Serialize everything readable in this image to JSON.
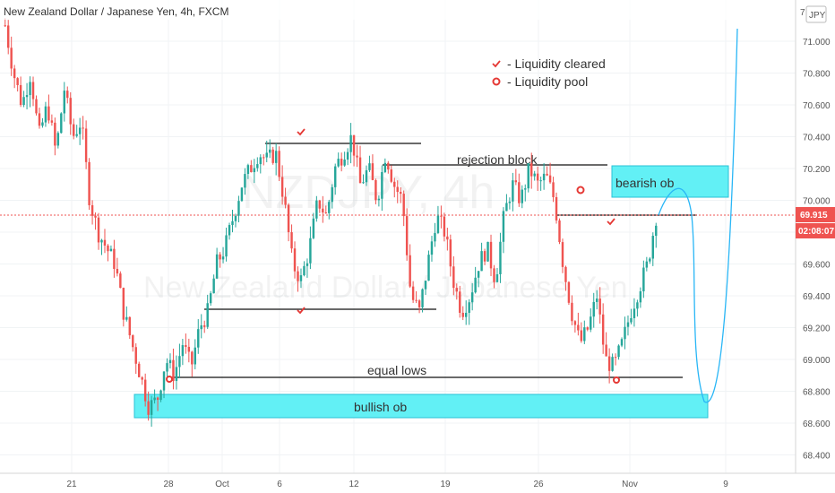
{
  "header": {
    "symbol_title": "New Zealand Dollar / Japanese Yen, 4h, FXCM"
  },
  "watermark": {
    "ticker": "NZDJPY, 4h",
    "name": "New Zealand Dollar / Japanese Yen"
  },
  "currency_badge": "JPY",
  "price_axis": {
    "ticks": [
      "71.000",
      "70.800",
      "70.600",
      "70.400",
      "70.200",
      "70.000",
      "69.800",
      "69.600",
      "69.400",
      "69.200",
      "69.000",
      "68.800",
      "68.600",
      "68.400"
    ],
    "top_partial": "7",
    "current_price": "69.915",
    "countdown": "02:08:07"
  },
  "time_axis": {
    "labels": [
      "21",
      "28",
      "Oct",
      "6",
      "12",
      "19",
      "26",
      "Nov",
      "9"
    ]
  },
  "legend": {
    "cleared_icon": "check-icon",
    "cleared_label": "- Liquidity cleared",
    "pool_icon": "target-circle-icon",
    "pool_label": "- Liquidity pool"
  },
  "annotations": {
    "rejection_block": "rejection block",
    "bearish_ob": "bearish ob",
    "equal_lows": "equal lows",
    "bullish_ob": "bullish ob"
  },
  "colors": {
    "up": "#26a69a",
    "down": "#ef5350",
    "zone_fill": "#62f0f5",
    "zone_border": "#29c2d6",
    "projection": "#29b6f6",
    "marker": "#e53935",
    "price_tag": "#ef5350"
  },
  "chart_data": {
    "type": "candlestick",
    "title": "New Zealand Dollar / Japanese Yen, 4h, FXCM",
    "y_range": [
      68.3,
      71.1
    ],
    "current_price": 69.915,
    "zones": [
      {
        "label": "bearish ob",
        "low": 70.02,
        "high": 70.22
      },
      {
        "label": "bullish ob",
        "low": 68.64,
        "high": 68.78
      }
    ],
    "levels": [
      {
        "label": "equal lows",
        "price": 68.88
      },
      {
        "label": "rejection block",
        "price": 70.22
      }
    ],
    "close_path": [
      71.1,
      70.8,
      70.6,
      70.8,
      70.4,
      70.6,
      70.3,
      70.7,
      70.4,
      70.5,
      70.0,
      69.8,
      69.7,
      69.6,
      69.3,
      69.1,
      68.9,
      68.7,
      68.75,
      69.0,
      68.9,
      69.1,
      68.95,
      69.2,
      69.3,
      69.6,
      69.7,
      69.9,
      70.1,
      70.2,
      70.3,
      70.25,
      70.3,
      70.0,
      69.6,
      69.5,
      69.7,
      70.0,
      69.9,
      70.2,
      70.3,
      70.4,
      70.1,
      70.2,
      70.0,
      70.3,
      70.1,
      70.0,
      69.4,
      69.3,
      69.6,
      69.9,
      69.8,
      69.5,
      69.3,
      69.4,
      69.6,
      69.7,
      69.5,
      69.9,
      70.1,
      70.0,
      70.2,
      70.1,
      70.15,
      70.0,
      69.6,
      69.3,
      69.1,
      69.2,
      69.4,
      69.0,
      68.95,
      69.1,
      69.3,
      69.45,
      69.6,
      69.9
    ]
  }
}
